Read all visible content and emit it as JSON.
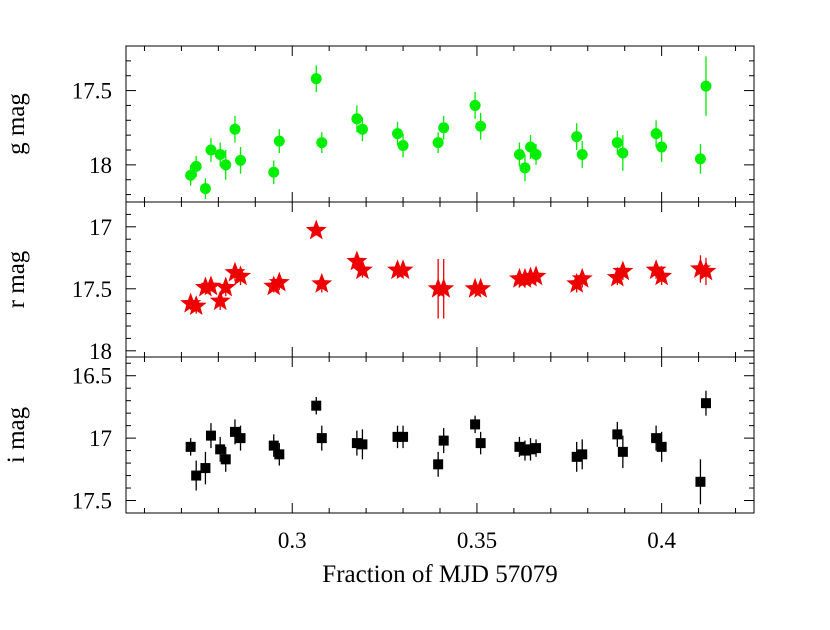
{
  "chart_data": {
    "type": "scatter",
    "xlabel": "Fraction of MJD 57079",
    "xlim": [
      0.255,
      0.425
    ],
    "xticks": [
      0.3,
      0.35,
      0.4
    ],
    "xtick_labels": [
      "0.3",
      "0.35",
      "0.4"
    ],
    "x": [
      0.2725,
      0.274,
      0.2765,
      0.278,
      0.2805,
      0.282,
      0.2845,
      0.286,
      0.295,
      0.2965,
      0.3065,
      0.308,
      0.3175,
      0.319,
      0.3285,
      0.33,
      0.3395,
      0.341,
      0.3495,
      0.351,
      0.3615,
      0.363,
      0.3645,
      0.366,
      0.377,
      0.3785,
      0.388,
      0.3895,
      0.3985,
      0.4,
      0.4105,
      0.412
    ],
    "panels": [
      {
        "ylabel": "g mag",
        "ylim": [
          18.25,
          17.2
        ],
        "yticks": [
          17.5,
          18
        ],
        "ytick_labels": [
          "17.5",
          "18"
        ],
        "marker": "circle",
        "color": "#00ee00",
        "y": [
          18.07,
          18.01,
          18.16,
          17.9,
          17.93,
          18.0,
          17.76,
          17.97,
          18.05,
          17.84,
          17.42,
          17.85,
          17.69,
          17.76,
          17.79,
          17.87,
          17.85,
          17.75,
          17.6,
          17.74,
          17.93,
          18.02,
          17.88,
          17.93,
          17.81,
          17.93,
          17.85,
          17.92,
          17.79,
          17.88,
          17.96,
          17.47
        ],
        "yerr": [
          0.07,
          0.07,
          0.07,
          0.08,
          0.08,
          0.1,
          0.09,
          0.09,
          0.08,
          0.08,
          0.09,
          0.07,
          0.09,
          0.08,
          0.08,
          0.08,
          0.07,
          0.08,
          0.09,
          0.09,
          0.08,
          0.09,
          0.08,
          0.07,
          0.09,
          0.09,
          0.08,
          0.12,
          0.09,
          0.1,
          0.1,
          0.2
        ]
      },
      {
        "ylabel": "r mag",
        "ylim": [
          18.05,
          16.8
        ],
        "yticks": [
          17,
          17.5,
          18
        ],
        "ytick_labels": [
          "17",
          "17.5",
          "18"
        ],
        "marker": "star",
        "color": "#ee0000",
        "y": [
          17.62,
          17.64,
          17.49,
          17.48,
          17.6,
          17.49,
          17.37,
          17.4,
          17.48,
          17.45,
          17.03,
          17.46,
          17.28,
          17.35,
          17.35,
          17.35,
          17.5,
          17.5,
          17.5,
          17.5,
          17.42,
          17.42,
          17.41,
          17.4,
          17.46,
          17.42,
          17.41,
          17.36,
          17.35,
          17.4,
          17.34,
          17.36
        ],
        "yerr": [
          0.05,
          0.06,
          0.05,
          0.04,
          0.07,
          0.07,
          0.07,
          0.07,
          0.05,
          0.06,
          0.04,
          0.07,
          0.07,
          0.06,
          0.06,
          0.06,
          0.24,
          0.24,
          0.03,
          0.03,
          0.07,
          0.07,
          0.06,
          0.05,
          0.07,
          0.07,
          0.06,
          0.07,
          0.07,
          0.07,
          0.11,
          0.11
        ]
      },
      {
        "ylabel": "i mag",
        "ylim": [
          17.6,
          16.35
        ],
        "yticks": [
          16.5,
          17,
          17.5
        ],
        "ytick_labels": [
          "16.5",
          "17",
          "17.5"
        ],
        "marker": "square",
        "color": "#000000",
        "y": [
          17.07,
          17.3,
          17.24,
          16.98,
          17.09,
          17.17,
          16.95,
          17.0,
          17.06,
          17.13,
          16.74,
          17.0,
          17.04,
          17.05,
          16.99,
          16.99,
          17.21,
          17.02,
          16.89,
          17.04,
          17.07,
          17.1,
          17.09,
          17.08,
          17.15,
          17.13,
          16.97,
          17.11,
          17.0,
          17.07,
          17.35,
          16.72
        ],
        "yerr": [
          0.07,
          0.12,
          0.13,
          0.1,
          0.1,
          0.1,
          0.1,
          0.1,
          0.09,
          0.09,
          0.07,
          0.1,
          0.1,
          0.12,
          0.09,
          0.09,
          0.1,
          0.1,
          0.07,
          0.09,
          0.08,
          0.08,
          0.09,
          0.07,
          0.12,
          0.12,
          0.1,
          0.13,
          0.1,
          0.12,
          0.18,
          0.1
        ]
      }
    ]
  }
}
